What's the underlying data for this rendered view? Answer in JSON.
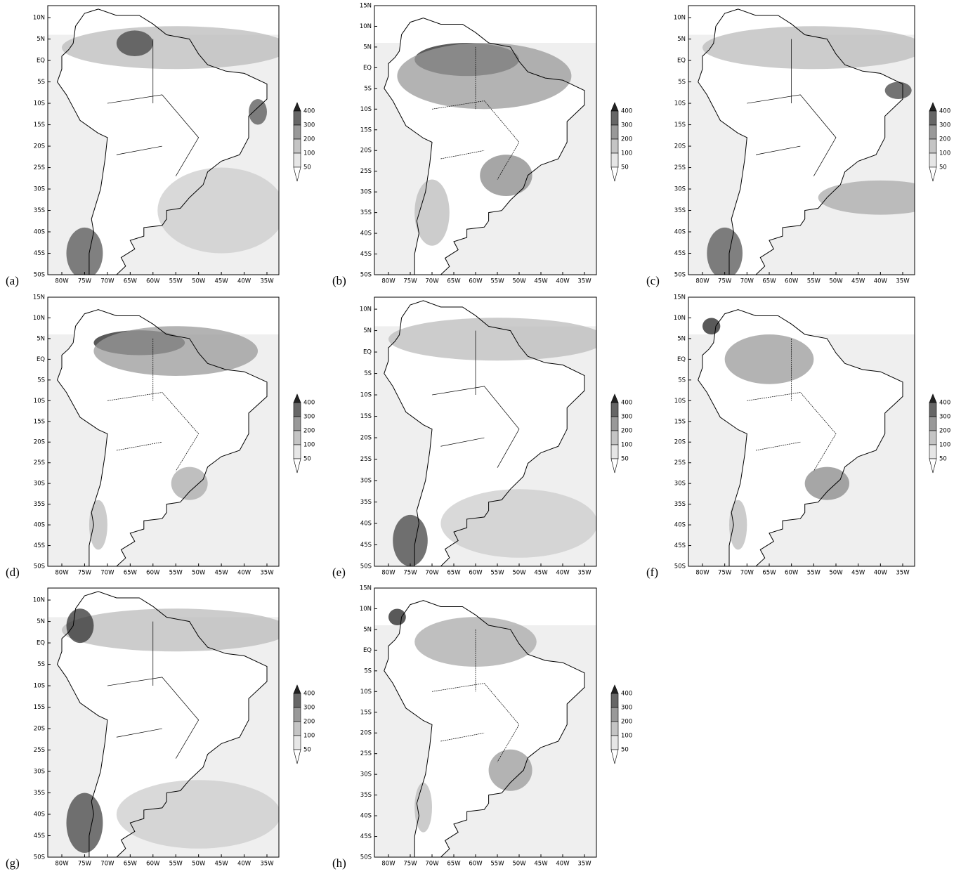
{
  "panels": [
    {
      "label": "(a)",
      "yticks": [
        "10N",
        "5N",
        "EQ",
        "5S",
        "10S",
        "15S",
        "20S",
        "25S",
        "30S",
        "35S",
        "40S",
        "45S",
        "50S"
      ]
    },
    {
      "label": "(b)",
      "yticks": [
        "15N",
        "10N",
        "5N",
        "EQ",
        "5S",
        "10S",
        "15S",
        "20S",
        "25S",
        "30S",
        "35S",
        "40S",
        "45S",
        "50S"
      ]
    },
    {
      "label": "(c)",
      "yticks": [
        "10N",
        "5N",
        "EQ",
        "5S",
        "10S",
        "15S",
        "20S",
        "25S",
        "30S",
        "35S",
        "40S",
        "45S",
        "50S"
      ]
    },
    {
      "label": "(d)",
      "yticks": [
        "15N",
        "10N",
        "5N",
        "EQ",
        "5S",
        "10S",
        "15S",
        "20S",
        "25S",
        "30S",
        "35S",
        "40S",
        "45S",
        "50S"
      ]
    },
    {
      "label": "(e)",
      "yticks": [
        "10N",
        "5N",
        "EQ",
        "5S",
        "10S",
        "15S",
        "20S",
        "25S",
        "30S",
        "35S",
        "40S",
        "45S",
        "50S"
      ]
    },
    {
      "label": "(f)",
      "yticks": [
        "15N",
        "10N",
        "5N",
        "EQ",
        "5S",
        "10S",
        "15S",
        "20S",
        "25S",
        "30S",
        "35S",
        "40S",
        "45S",
        "50S"
      ]
    },
    {
      "label": "(g)",
      "yticks": [
        "10N",
        "5N",
        "EQ",
        "5S",
        "10S",
        "15S",
        "20S",
        "25S",
        "30S",
        "35S",
        "40S",
        "45S",
        "50S"
      ]
    },
    {
      "label": "(h)",
      "yticks": [
        "15N",
        "10N",
        "5N",
        "EQ",
        "5S",
        "10S",
        "15S",
        "20S",
        "25S",
        "30S",
        "35S",
        "40S",
        "45S",
        "50S"
      ]
    }
  ],
  "xticks": [
    "80W",
    "75W",
    "70W",
    "65W",
    "60W",
    "55W",
    "50W",
    "45W",
    "40W",
    "35W"
  ],
  "colorbar_levels": [
    400,
    300,
    200,
    100,
    50
  ]
}
